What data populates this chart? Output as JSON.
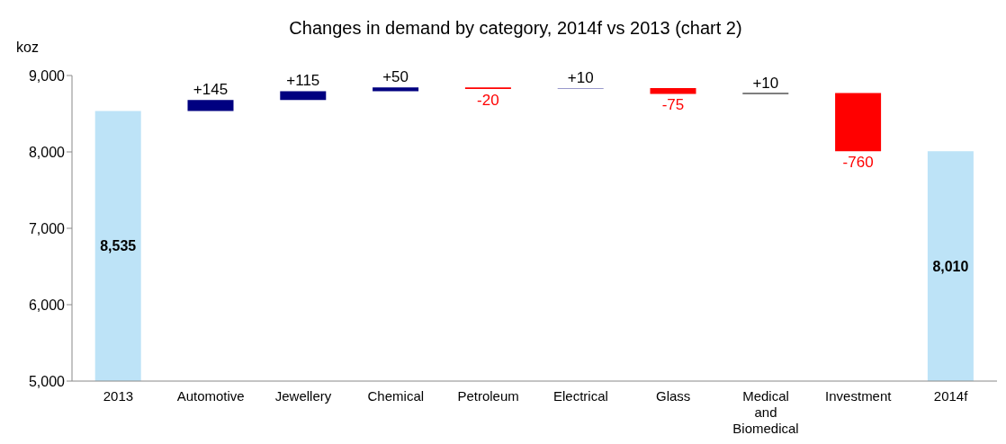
{
  "chart_data": {
    "type": "bar",
    "title": "Changes in demand by category, 2014f vs 2013 (chart 2)",
    "ylabel": "koz",
    "categories": [
      "2013",
      "Automotive",
      "Jewellery",
      "Chemical",
      "Petroleum",
      "Electrical",
      "Glass",
      "Medical and Biomedical",
      "Investment",
      "2014f"
    ],
    "values": [
      8535,
      145,
      115,
      50,
      -20,
      10,
      -75,
      10,
      -760,
      8010
    ],
    "base": [
      null,
      8535,
      8680,
      8795,
      8845,
      8825,
      8835,
      8760,
      8770,
      null
    ],
    "colors": [
      "#bde3f7",
      "#000080",
      "#000080",
      "#000080",
      "#ff0000",
      "#9999cc",
      "#ff0000",
      "#000000",
      "#ff0000",
      "#bde3f7"
    ],
    "value_labels": [
      "8,535",
      "+145",
      "+115",
      "+50",
      "-20",
      "+10",
      "-75",
      "+10",
      "-760",
      "8,010"
    ],
    "ylim": [
      5000,
      9000
    ],
    "yticks": [
      {
        "value": 5000,
        "label": "5,000"
      },
      {
        "value": 6000,
        "label": "6,000"
      },
      {
        "value": 7000,
        "label": "7,000"
      },
      {
        "value": 8000,
        "label": "8,000"
      },
      {
        "value": 9000,
        "label": "9,000"
      }
    ],
    "grid": false,
    "legend": false
  }
}
